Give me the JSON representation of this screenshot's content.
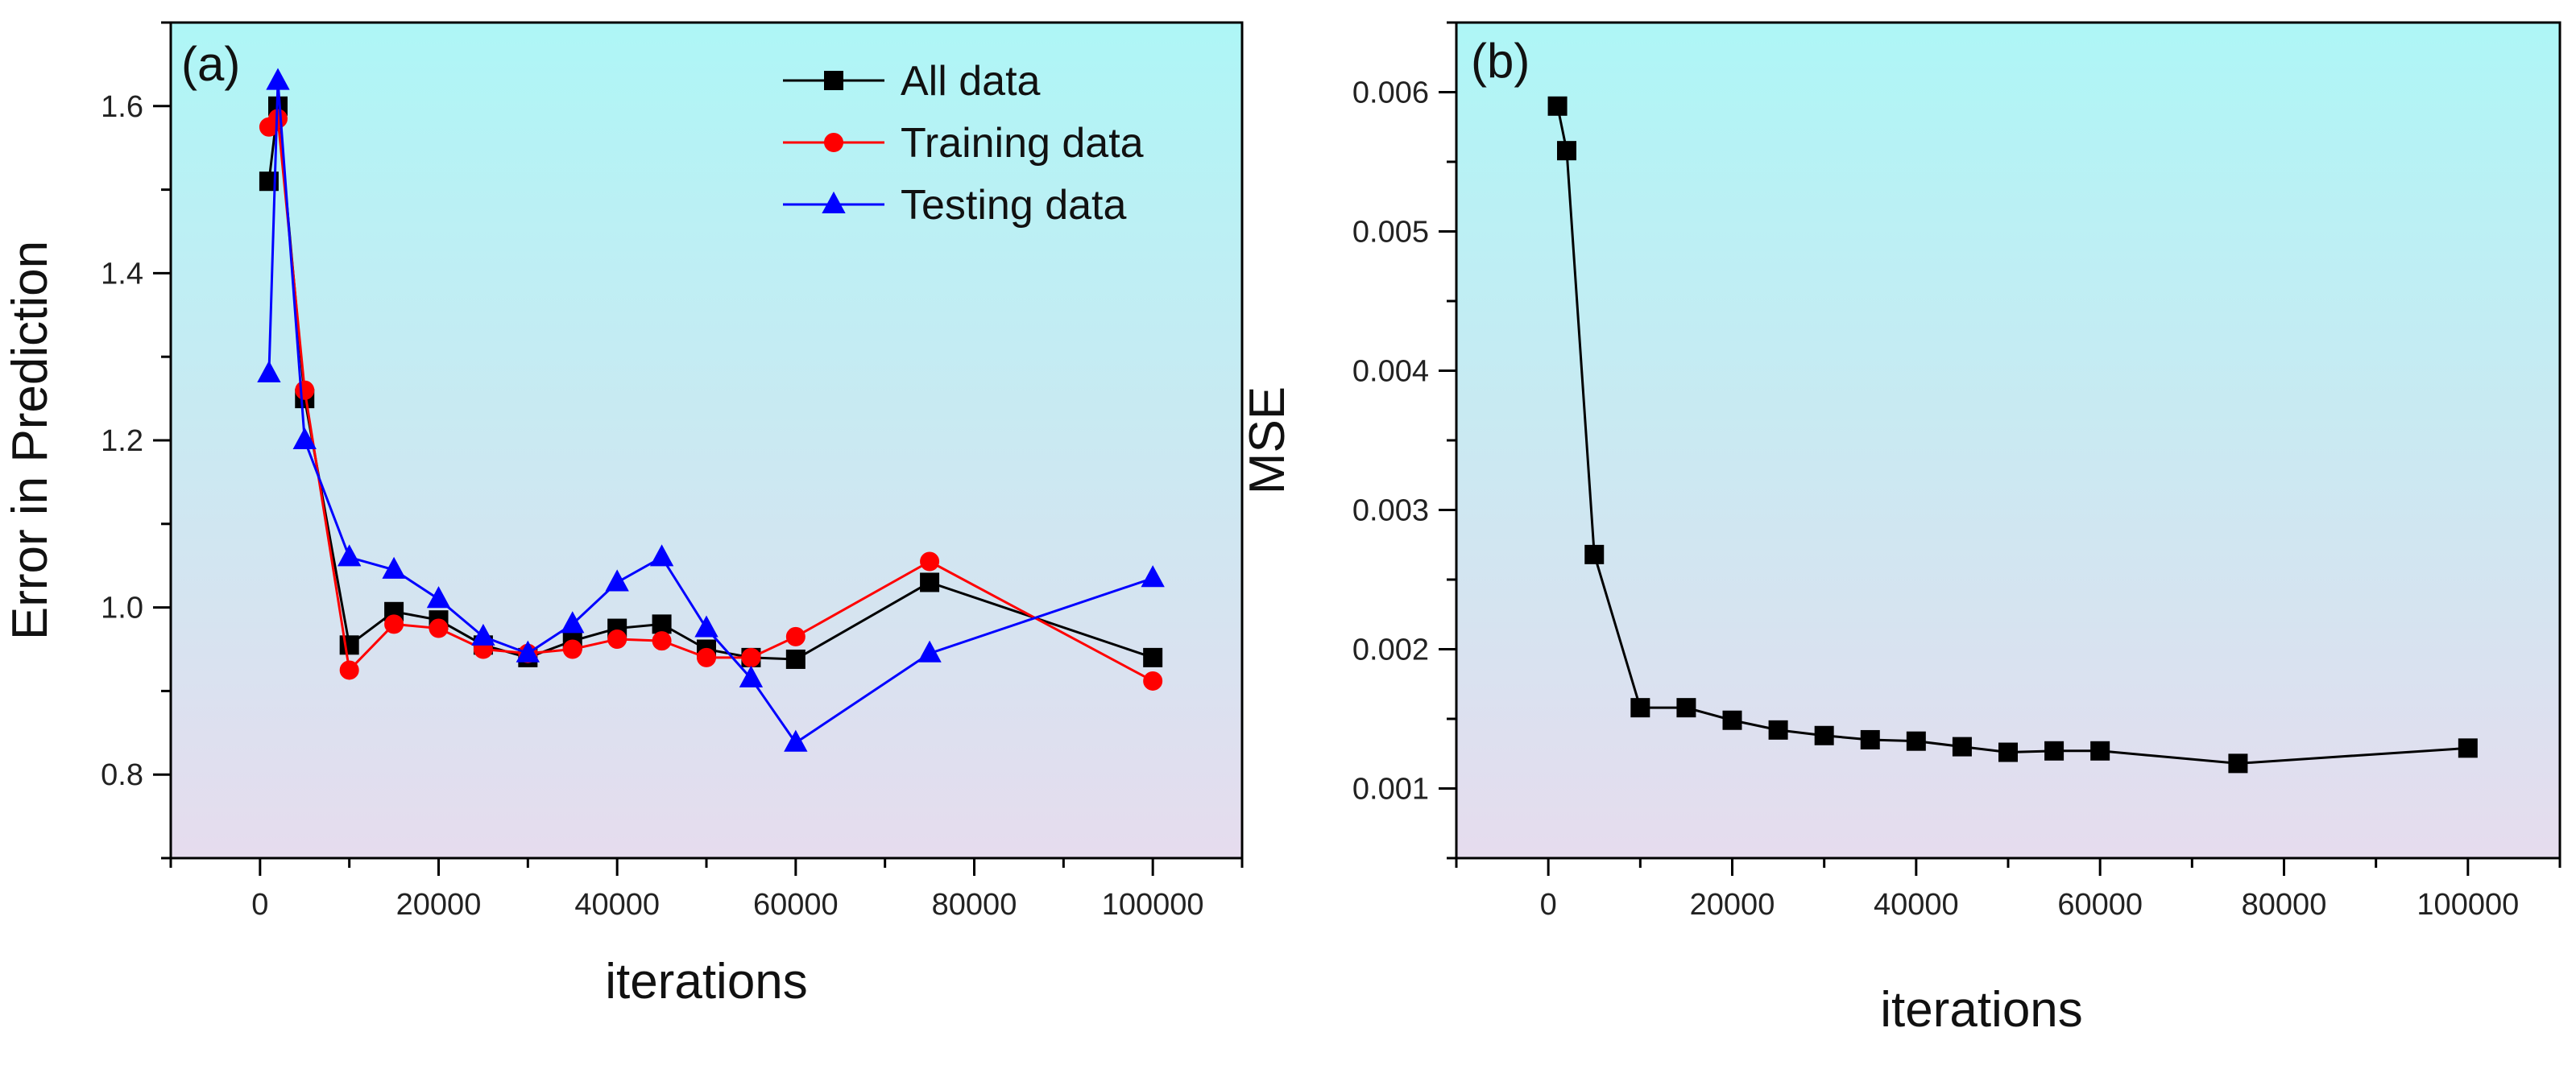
{
  "chart_data": [
    {
      "type": "line",
      "panel_label": "(a)",
      "xlabel": "iterations",
      "ylabel": "Error in Prediction",
      "xlim": [
        -10000,
        110000
      ],
      "ylim": [
        0.7,
        1.7
      ],
      "x_ticks": [
        0,
        20000,
        40000,
        60000,
        80000,
        100000
      ],
      "x_tick_labels": [
        "0",
        "20000",
        "40000",
        "60000",
        "80000",
        "100000"
      ],
      "y_ticks": [
        0.8,
        1.0,
        1.2,
        1.4,
        1.6
      ],
      "y_tick_labels": [
        "0.8",
        "1.0",
        "1.2",
        "1.4",
        "1.6"
      ],
      "legend_position": "top-right",
      "background_gradient": [
        "#aef6f6",
        "#e6dcee"
      ],
      "x": [
        1000,
        2000,
        5000,
        10000,
        15000,
        20000,
        25000,
        30000,
        35000,
        40000,
        45000,
        50000,
        55000,
        60000,
        75000,
        100000
      ],
      "series": [
        {
          "name": "All data",
          "color": "#000000",
          "marker": "square",
          "values": [
            1.51,
            1.6,
            1.25,
            0.955,
            0.995,
            0.985,
            0.955,
            0.94,
            0.96,
            0.975,
            0.98,
            0.95,
            0.94,
            0.938,
            1.03,
            0.94
          ]
        },
        {
          "name": "Training data",
          "color": "#ff0000",
          "marker": "circle",
          "values": [
            1.575,
            1.585,
            1.26,
            0.925,
            0.98,
            0.975,
            0.95,
            0.945,
            0.95,
            0.962,
            0.96,
            0.94,
            0.94,
            0.965,
            1.055,
            0.912
          ]
        },
        {
          "name": "Testing data",
          "color": "#0000ff",
          "marker": "triangle",
          "values": [
            1.28,
            1.63,
            1.2,
            1.06,
            1.045,
            1.01,
            0.965,
            0.945,
            0.98,
            1.03,
            1.06,
            0.975,
            0.915,
            0.838,
            0.945,
            1.035
          ]
        }
      ]
    },
    {
      "type": "line",
      "panel_label": "(b)",
      "xlabel": "iterations",
      "ylabel": "MSE",
      "xlim": [
        -10000,
        110000
      ],
      "ylim": [
        0.0005,
        0.0065
      ],
      "x_ticks": [
        0,
        20000,
        40000,
        60000,
        80000,
        100000
      ],
      "x_tick_labels": [
        "0",
        "20000",
        "40000",
        "60000",
        "80000",
        "100000"
      ],
      "y_ticks": [
        0.001,
        0.002,
        0.003,
        0.004,
        0.005,
        0.006
      ],
      "y_tick_labels": [
        "0.001",
        "0.002",
        "0.003",
        "0.004",
        "0.005",
        "0.006"
      ],
      "background_gradient": [
        "#aef6f6",
        "#e6dcee"
      ],
      "x": [
        1000,
        2000,
        5000,
        10000,
        15000,
        20000,
        25000,
        30000,
        35000,
        40000,
        45000,
        50000,
        55000,
        60000,
        75000,
        100000
      ],
      "series": [
        {
          "name": "MSE",
          "color": "#000000",
          "marker": "square",
          "values": [
            0.0059,
            0.00558,
            0.00268,
            0.00158,
            0.00158,
            0.00149,
            0.00142,
            0.00138,
            0.00135,
            0.00134,
            0.0013,
            0.00126,
            0.00127,
            0.00127,
            0.00118,
            0.00129
          ]
        }
      ]
    }
  ]
}
